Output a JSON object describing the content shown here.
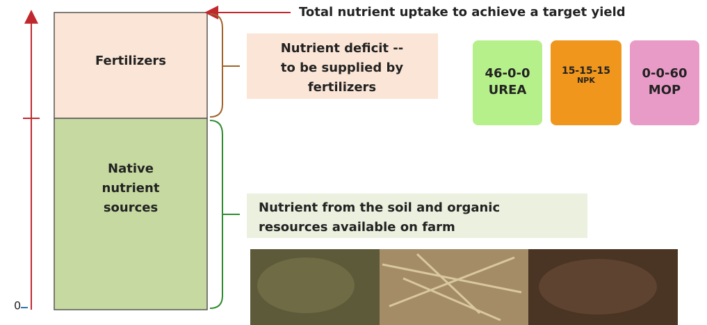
{
  "header": {
    "title": "Total nutrient uptake to achieve a target yield"
  },
  "axis": {
    "origin": "0"
  },
  "nodes": [
    {
      "lines": [
        "Fertilizers"
      ]
    },
    {
      "lines": [
        "Native",
        "nutrient",
        "sources"
      ]
    }
  ],
  "callouts": [
    {
      "lines": [
        "Nutrient deficit --",
        "to be supplied by",
        "fertilizers"
      ]
    },
    {
      "lines": [
        "Nutrient from the soil and organic",
        "resources available on farm"
      ]
    }
  ],
  "bags": [
    {
      "lines": [
        "46-0-0",
        "UREA"
      ]
    },
    {
      "lines": [
        "15-15-15",
        "NPK"
      ]
    },
    {
      "lines": [
        "0-0-60",
        "MOP"
      ]
    }
  ]
}
